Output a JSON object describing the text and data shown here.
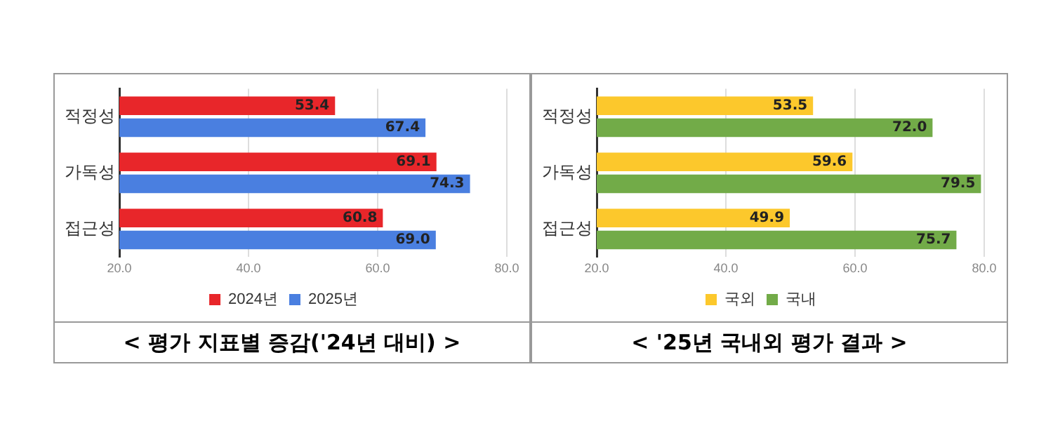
{
  "chart_data": [
    {
      "type": "bar",
      "orientation": "horizontal",
      "title": "< 평가 지표별 증감('24년 대비) >",
      "categories": [
        "적정성",
        "가독성",
        "접근성"
      ],
      "series": [
        {
          "name": "2024년",
          "color": "#e8262a",
          "values": [
            53.4,
            69.1,
            60.8
          ],
          "value_labels": [
            "53.4",
            "69.1",
            "60.8"
          ]
        },
        {
          "name": "2025년",
          "color": "#4a7fe0",
          "values": [
            67.4,
            74.3,
            69.0
          ],
          "value_labels": [
            "67.4",
            "74.3",
            "69.0"
          ]
        }
      ],
      "xlim": [
        20,
        80
      ],
      "xticks": [
        {
          "value": 20,
          "label": "20.0"
        },
        {
          "value": 40,
          "label": "40.0"
        },
        {
          "value": 60,
          "label": "60.0"
        },
        {
          "value": 80,
          "label": "80.0"
        }
      ],
      "grid": "x",
      "legend": "bottom"
    },
    {
      "type": "bar",
      "orientation": "horizontal",
      "title": "< '25년 국내외 평가 결과 >",
      "categories": [
        "적정성",
        "가독성",
        "접근성"
      ],
      "series": [
        {
          "name": "국외",
          "color": "#fcc82c",
          "values": [
            53.5,
            59.6,
            49.9
          ],
          "value_labels": [
            "53.5",
            "59.6",
            "49.9"
          ]
        },
        {
          "name": "국내",
          "color": "#72ab48",
          "values": [
            72.0,
            79.5,
            75.7
          ],
          "value_labels": [
            "72.0",
            "79.5",
            "75.7"
          ]
        }
      ],
      "xlim": [
        20,
        80
      ],
      "xticks": [
        {
          "value": 20,
          "label": "20.0"
        },
        {
          "value": 40,
          "label": "40.0"
        },
        {
          "value": 60,
          "label": "60.0"
        },
        {
          "value": 80,
          "label": "80.0"
        }
      ],
      "grid": "x",
      "legend": "bottom"
    }
  ]
}
